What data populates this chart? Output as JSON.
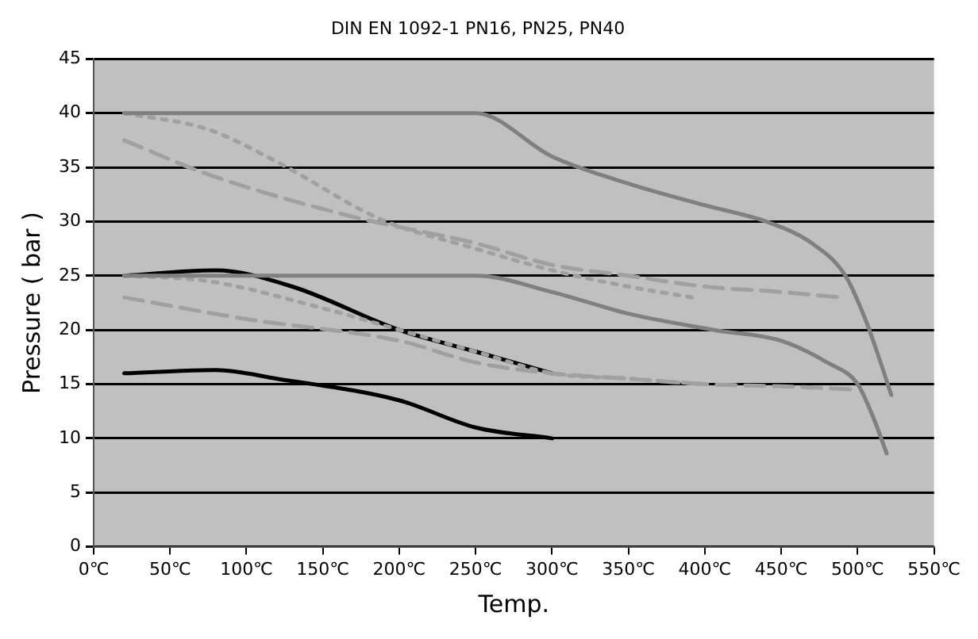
{
  "chart_data": {
    "type": "line",
    "title": "DIN EN 1092-1 PN16, PN25, PN40",
    "xlabel": "Temp.",
    "ylabel": "Pressure ( bar )",
    "xlim": [
      0,
      550
    ],
    "xticks": [
      {
        "value": 0,
        "label": "0℃"
      },
      {
        "value": 50,
        "label": "50℃"
      },
      {
        "value": 100,
        "label": "100℃"
      },
      {
        "value": 150,
        "label": "150℃"
      },
      {
        "value": 200,
        "label": "200℃"
      },
      {
        "value": 250,
        "label": "250℃"
      },
      {
        "value": 300,
        "label": "300℃"
      },
      {
        "value": 350,
        "label": "350℃"
      },
      {
        "value": 400,
        "label": "400℃"
      },
      {
        "value": 450,
        "label": "450℃"
      },
      {
        "value": 500,
        "label": "500℃"
      },
      {
        "value": 550,
        "label": "550℃"
      }
    ],
    "ylim": [
      0,
      45
    ],
    "yticks": [
      0,
      5,
      10,
      15,
      20,
      25,
      30,
      35,
      40,
      45
    ],
    "grid": "y",
    "marker": "none",
    "series": [
      {
        "color": "#808080",
        "line_style": "solid",
        "x": [
          20,
          100,
          200,
          250,
          300,
          350,
          400,
          440,
          470,
          492,
          505,
          515,
          522
        ],
        "values": [
          40,
          40,
          40,
          40,
          36,
          33.5,
          31.5,
          30,
          28,
          25,
          21,
          17,
          14
        ]
      },
      {
        "color": "#808080",
        "line_style": "solid",
        "x": [
          20,
          100,
          200,
          250,
          300,
          350,
          406,
          450,
          480,
          500,
          510,
          519
        ],
        "values": [
          25,
          25,
          25,
          25,
          23.5,
          21.5,
          20,
          19,
          17,
          15,
          12,
          8.6
        ]
      },
      {
        "color": "#a0a0a0",
        "line_style": "dotted",
        "x": [
          20,
          75,
          120,
          188,
          250,
          300,
          350,
          392
        ],
        "values": [
          40,
          38.5,
          35.5,
          30.2,
          27.5,
          25.5,
          24,
          23
        ]
      },
      {
        "color": "#a0a0a0",
        "line_style": "dashed",
        "x": [
          20,
          74,
          168,
          250,
          300,
          350,
          400,
          450,
          489
        ],
        "values": [
          37.5,
          34.4,
          30.5,
          28,
          26,
          25,
          24,
          23.5,
          23
        ]
      },
      {
        "color": "#a0a0a0",
        "line_style": "dotted",
        "x": [
          20,
          75,
          150,
          200,
          250,
          300,
          350,
          400
        ],
        "values": [
          25,
          24.5,
          22,
          20,
          18,
          16,
          15.5,
          15
        ]
      },
      {
        "color": "#a0a0a0",
        "line_style": "dashed",
        "x": [
          20,
          100,
          200,
          250,
          300,
          350,
          400,
          450,
          500
        ],
        "values": [
          23,
          21,
          19,
          17,
          16,
          15.5,
          15,
          14.8,
          14.5
        ]
      },
      {
        "color": "#000000",
        "line_style": "solid",
        "x": [
          20,
          80,
          130,
          200,
          250,
          300
        ],
        "values": [
          25,
          25.5,
          24,
          20,
          18,
          16
        ]
      },
      {
        "color": "#000000",
        "line_style": "solid",
        "x": [
          20,
          80,
          120,
          200,
          250,
          300
        ],
        "values": [
          16,
          16.3,
          15.5,
          13.5,
          11,
          10
        ]
      }
    ]
  }
}
